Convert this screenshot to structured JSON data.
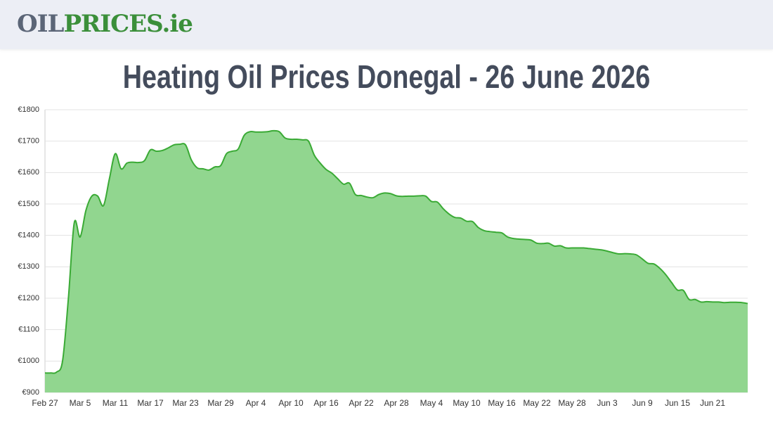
{
  "header": {
    "logo": [
      "OIL",
      "PRICES.ie"
    ]
  },
  "chart_data": {
    "type": "area",
    "title": "Heating Oil Prices Donegal - 26 June 2026",
    "categories": [
      "Feb 27",
      null,
      null,
      null,
      null,
      null,
      "Mar 5",
      null,
      null,
      null,
      null,
      null,
      "Mar 11",
      null,
      null,
      null,
      null,
      null,
      "Mar 17",
      null,
      null,
      null,
      null,
      null,
      "Mar 23",
      null,
      null,
      null,
      null,
      null,
      "Mar 29",
      null,
      null,
      null,
      null,
      null,
      "Apr 4",
      null,
      null,
      null,
      null,
      null,
      "Apr 10",
      null,
      null,
      null,
      null,
      null,
      "Apr 16",
      null,
      null,
      null,
      null,
      null,
      "Apr 22",
      null,
      null,
      null,
      null,
      null,
      "Apr 28",
      null,
      null,
      null,
      null,
      null,
      "May 4",
      null,
      null,
      null,
      null,
      null,
      "May 10",
      null,
      null,
      null,
      null,
      null,
      "May 16",
      null,
      null,
      null,
      null,
      null,
      "May 22",
      null,
      null,
      null,
      null,
      null,
      "May 28",
      null,
      null,
      null,
      null,
      null,
      "Jun 3",
      null,
      null,
      null,
      null,
      null,
      "Jun 9",
      null,
      null,
      null,
      null,
      null,
      "Jun 15",
      null,
      null,
      null,
      null,
      null,
      "Jun 21",
      null,
      null,
      null,
      null,
      null,
      null
    ],
    "values": [
      962,
      962,
      965,
      1000,
      1200,
      1440,
      1395,
      1480,
      1525,
      1525,
      1495,
      1580,
      1660,
      1612,
      1630,
      1633,
      1632,
      1638,
      1672,
      1668,
      1670,
      1678,
      1688,
      1690,
      1688,
      1640,
      1615,
      1612,
      1608,
      1618,
      1622,
      1660,
      1668,
      1675,
      1718,
      1730,
      1729,
      1729,
      1730,
      1733,
      1730,
      1710,
      1706,
      1706,
      1704,
      1700,
      1655,
      1630,
      1610,
      1598,
      1580,
      1563,
      1566,
      1530,
      1527,
      1522,
      1520,
      1530,
      1535,
      1533,
      1526,
      1524,
      1525,
      1525,
      1526,
      1525,
      1508,
      1506,
      1485,
      1468,
      1457,
      1455,
      1445,
      1444,
      1425,
      1415,
      1412,
      1410,
      1408,
      1395,
      1390,
      1388,
      1387,
      1385,
      1375,
      1374,
      1375,
      1366,
      1367,
      1360,
      1360,
      1360,
      1360,
      1358,
      1356,
      1354,
      1350,
      1345,
      1341,
      1342,
      1341,
      1338,
      1325,
      1311,
      1309,
      1295,
      1275,
      1250,
      1226,
      1225,
      1196,
      1196,
      1188,
      1189,
      1188,
      1188,
      1186,
      1187,
      1187,
      1186,
      1183
    ],
    "line_color": "#3aaa35",
    "fill_color": "#91d68f",
    "ylim": [
      900,
      1800
    ],
    "yticks": [
      {
        "value": 900,
        "label": "€900"
      },
      {
        "value": 1000,
        "label": "€1000"
      },
      {
        "value": 1100,
        "label": "€1100"
      },
      {
        "value": 1200,
        "label": "€1200"
      },
      {
        "value": 1300,
        "label": "€1300"
      },
      {
        "value": 1400,
        "label": "€1400"
      },
      {
        "value": 1500,
        "label": "€1500"
      },
      {
        "value": 1600,
        "label": "€1600"
      },
      {
        "value": 1700,
        "label": "€1700"
      },
      {
        "value": 1800,
        "label": "€1800"
      }
    ],
    "grid": true
  }
}
